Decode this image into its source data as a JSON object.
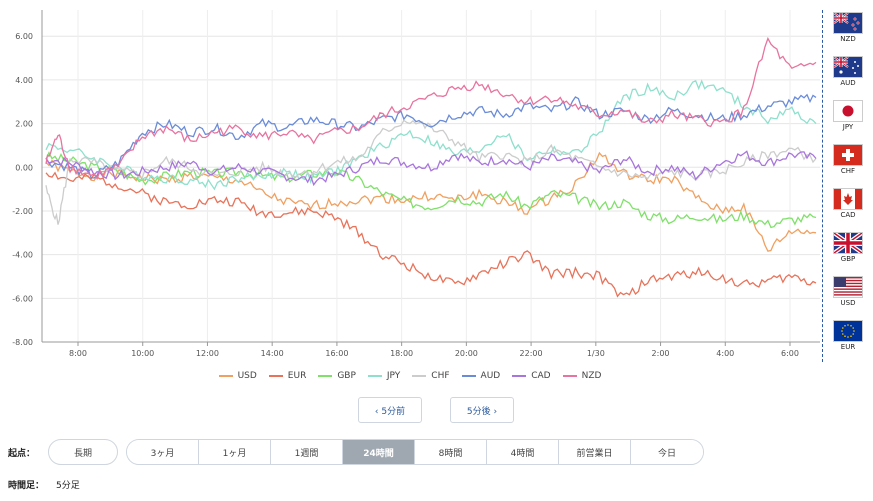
{
  "chart_data": {
    "type": "line",
    "y_ticks": [
      "6.00",
      "4.00",
      "2.00",
      "0.00",
      "-2.00",
      "-4.00",
      "-6.00",
      "-8.00"
    ],
    "x_ticks": [
      "8:00",
      "10:00",
      "12:00",
      "14:00",
      "16:00",
      "18:00",
      "20:00",
      "22:00",
      "1/30",
      "2:00",
      "4:00",
      "6:00"
    ],
    "ylim": [
      -8,
      7.2
    ],
    "grid": true,
    "legend_position": "bottom",
    "series": [
      {
        "name": "USD",
        "color": "#f0a060",
        "points": [
          [
            0,
            0.2
          ],
          [
            1,
            -0.2
          ],
          [
            2,
            -0.4
          ],
          [
            3,
            -0.3
          ],
          [
            4,
            -0.5
          ],
          [
            5,
            -0.6
          ],
          [
            6,
            -0.4
          ],
          [
            7,
            -0.5
          ],
          [
            8,
            -0.6
          ],
          [
            9,
            -1.2
          ],
          [
            10,
            -1.6
          ],
          [
            11,
            -1.8
          ],
          [
            12,
            -1.6
          ],
          [
            13,
            -1.5
          ],
          [
            14,
            -1.4
          ],
          [
            15,
            -1.5
          ],
          [
            16,
            -1.3
          ],
          [
            17,
            -1.5
          ],
          [
            18,
            -1.2
          ],
          [
            19,
            -1.6
          ],
          [
            20,
            -2.0
          ],
          [
            21,
            -1.4
          ],
          [
            22,
            -0.8
          ],
          [
            23,
            0.6
          ],
          [
            24,
            -0.3
          ],
          [
            25,
            -0.6
          ],
          [
            26,
            -0.5
          ],
          [
            27,
            -1.4
          ],
          [
            28,
            -2.0
          ],
          [
            29,
            -1.8
          ],
          [
            30,
            -3.8
          ],
          [
            31,
            -2.9
          ],
          [
            32,
            -3.0
          ]
        ]
      },
      {
        "name": "EUR",
        "color": "#e8735a",
        "points": [
          [
            0,
            -0.2
          ],
          [
            1,
            -0.6
          ],
          [
            2,
            -0.5
          ],
          [
            3,
            -0.8
          ],
          [
            4,
            -1.2
          ],
          [
            5,
            -1.6
          ],
          [
            6,
            -1.7
          ],
          [
            7,
            -1.5
          ],
          [
            8,
            -1.6
          ],
          [
            9,
            -2.1
          ],
          [
            10,
            -2.1
          ],
          [
            11,
            -2.0
          ],
          [
            12,
            -2.3
          ],
          [
            13,
            -3.0
          ],
          [
            14,
            -4.0
          ],
          [
            15,
            -4.5
          ],
          [
            16,
            -5.0
          ],
          [
            17,
            -5.4
          ],
          [
            18,
            -4.9
          ],
          [
            19,
            -4.4
          ],
          [
            20,
            -4.0
          ],
          [
            21,
            -4.9
          ],
          [
            22,
            -4.8
          ],
          [
            23,
            -5.0
          ],
          [
            24,
            -6.0
          ],
          [
            25,
            -5.2
          ],
          [
            26,
            -5.0
          ],
          [
            27,
            -4.8
          ],
          [
            28,
            -5.0
          ],
          [
            29,
            -5.4
          ],
          [
            30,
            -5.2
          ],
          [
            31,
            -5.0
          ],
          [
            32,
            -5.3
          ]
        ]
      },
      {
        "name": "GBP",
        "color": "#7fe06a",
        "points": [
          [
            0,
            0.5
          ],
          [
            1,
            0.3
          ],
          [
            2,
            0.0
          ],
          [
            3,
            -0.2
          ],
          [
            4,
            -0.6
          ],
          [
            5,
            -0.4
          ],
          [
            6,
            -0.2
          ],
          [
            7,
            -0.3
          ],
          [
            8,
            -0.2
          ],
          [
            9,
            -0.4
          ],
          [
            10,
            -0.5
          ],
          [
            11,
            -0.3
          ],
          [
            12,
            -0.2
          ],
          [
            13,
            -0.6
          ],
          [
            14,
            -1.2
          ],
          [
            15,
            -1.6
          ],
          [
            16,
            -1.8
          ],
          [
            17,
            -1.4
          ],
          [
            18,
            -1.6
          ],
          [
            19,
            -1.2
          ],
          [
            20,
            -1.8
          ],
          [
            21,
            -1.2
          ],
          [
            22,
            -1.4
          ],
          [
            23,
            -1.8
          ],
          [
            24,
            -1.6
          ],
          [
            25,
            -2.2
          ],
          [
            26,
            -2.4
          ],
          [
            27,
            -2.2
          ],
          [
            28,
            -2.4
          ],
          [
            29,
            -2.2
          ],
          [
            30,
            -2.6
          ],
          [
            31,
            -2.4
          ],
          [
            32,
            -2.3
          ]
        ]
      },
      {
        "name": "JPY",
        "color": "#8ee0cc",
        "points": [
          [
            0,
            1.0
          ],
          [
            1,
            0.8
          ],
          [
            2,
            0.4
          ],
          [
            3,
            0.0
          ],
          [
            4,
            -0.4
          ],
          [
            5,
            -0.5
          ],
          [
            6,
            -0.6
          ],
          [
            7,
            -0.8
          ],
          [
            8,
            -0.5
          ],
          [
            9,
            -0.4
          ],
          [
            10,
            -0.2
          ],
          [
            11,
            -0.5
          ],
          [
            12,
            -0.2
          ],
          [
            13,
            0.4
          ],
          [
            14,
            1.0
          ],
          [
            15,
            1.6
          ],
          [
            16,
            1.2
          ],
          [
            17,
            0.6
          ],
          [
            18,
            0.8
          ],
          [
            19,
            1.6
          ],
          [
            20,
            0.4
          ],
          [
            21,
            0.8
          ],
          [
            22,
            0.6
          ],
          [
            23,
            1.6
          ],
          [
            24,
            3.2
          ],
          [
            25,
            3.6
          ],
          [
            26,
            3.2
          ],
          [
            27,
            3.8
          ],
          [
            28,
            3.6
          ],
          [
            29,
            2.8
          ],
          [
            30,
            2.2
          ],
          [
            31,
            2.6
          ],
          [
            32,
            2.0
          ]
        ]
      },
      {
        "name": "CHF",
        "color": "#cccccc",
        "points": [
          [
            0,
            -1.0
          ],
          [
            0.5,
            -2.6
          ],
          [
            1,
            0.4
          ],
          [
            2,
            0.2
          ],
          [
            3,
            -0.2
          ],
          [
            4,
            -0.3
          ],
          [
            5,
            0.3
          ],
          [
            6,
            0.0
          ],
          [
            7,
            -0.4
          ],
          [
            8,
            -0.2
          ],
          [
            9,
            0.0
          ],
          [
            10,
            -0.3
          ],
          [
            11,
            -0.2
          ],
          [
            12,
            0.2
          ],
          [
            13,
            0.4
          ],
          [
            14,
            1.6
          ],
          [
            15,
            2.2
          ],
          [
            16,
            1.8
          ],
          [
            17,
            1.2
          ],
          [
            18,
            0.4
          ],
          [
            19,
            0.6
          ],
          [
            20,
            0.2
          ],
          [
            21,
            0.8
          ],
          [
            22,
            0.4
          ],
          [
            23,
            0.0
          ],
          [
            24,
            -0.3
          ],
          [
            25,
            -0.5
          ],
          [
            26,
            -0.2
          ],
          [
            27,
            -0.4
          ],
          [
            28,
            -0.2
          ],
          [
            29,
            0.2
          ],
          [
            30,
            0.6
          ],
          [
            31,
            0.8
          ],
          [
            32,
            0.4
          ]
        ]
      },
      {
        "name": "AUD",
        "color": "#6a8cd8",
        "points": [
          [
            0,
            0.3
          ],
          [
            1,
            0.0
          ],
          [
            2,
            -0.4
          ],
          [
            3,
            0.2
          ],
          [
            4,
            1.6
          ],
          [
            5,
            2.0
          ],
          [
            6,
            1.6
          ],
          [
            7,
            1.8
          ],
          [
            8,
            1.4
          ],
          [
            9,
            2.0
          ],
          [
            10,
            1.8
          ],
          [
            11,
            2.2
          ],
          [
            12,
            2.0
          ],
          [
            13,
            1.8
          ],
          [
            14,
            2.2
          ],
          [
            15,
            2.4
          ],
          [
            16,
            2.0
          ],
          [
            17,
            2.4
          ],
          [
            18,
            2.6
          ],
          [
            19,
            2.4
          ],
          [
            20,
            2.8
          ],
          [
            21,
            2.6
          ],
          [
            22,
            3.0
          ],
          [
            23,
            2.4
          ],
          [
            24,
            2.6
          ],
          [
            25,
            2.2
          ],
          [
            26,
            2.6
          ],
          [
            27,
            2.4
          ],
          [
            28,
            2.2
          ],
          [
            29,
            2.4
          ],
          [
            30,
            2.8
          ],
          [
            31,
            3.0
          ],
          [
            32,
            3.2
          ]
        ]
      },
      {
        "name": "CAD",
        "color": "#a875dc",
        "points": [
          [
            0,
            0.4
          ],
          [
            1,
            0.2
          ],
          [
            2,
            -0.2
          ],
          [
            3,
            -0.4
          ],
          [
            4,
            -0.2
          ],
          [
            5,
            0.0
          ],
          [
            6,
            0.2
          ],
          [
            7,
            -0.2
          ],
          [
            8,
            0.0
          ],
          [
            9,
            -0.2
          ],
          [
            10,
            -0.4
          ],
          [
            11,
            -0.6
          ],
          [
            12,
            -0.4
          ],
          [
            13,
            0.0
          ],
          [
            14,
            0.4
          ],
          [
            15,
            0.2
          ],
          [
            16,
            0.0
          ],
          [
            17,
            0.6
          ],
          [
            18,
            0.2
          ],
          [
            19,
            0.4
          ],
          [
            20,
            0.0
          ],
          [
            21,
            0.4
          ],
          [
            22,
            0.2
          ],
          [
            23,
            -0.2
          ],
          [
            24,
            0.4
          ],
          [
            25,
            -0.2
          ],
          [
            26,
            0.0
          ],
          [
            27,
            -0.4
          ],
          [
            28,
            0.2
          ],
          [
            29,
            0.6
          ],
          [
            30,
            0.2
          ],
          [
            31,
            0.6
          ],
          [
            32,
            0.4
          ]
        ]
      },
      {
        "name": "NZD",
        "color": "#e8739e",
        "points": [
          [
            0,
            0.2
          ],
          [
            0.5,
            1.5
          ],
          [
            1,
            0.0
          ],
          [
            2,
            -0.4
          ],
          [
            3,
            0.0
          ],
          [
            4,
            1.4
          ],
          [
            5,
            1.8
          ],
          [
            6,
            1.2
          ],
          [
            7,
            1.6
          ],
          [
            8,
            1.8
          ],
          [
            9,
            1.4
          ],
          [
            10,
            1.6
          ],
          [
            11,
            1.2
          ],
          [
            12,
            1.6
          ],
          [
            13,
            1.8
          ],
          [
            14,
            2.4
          ],
          [
            15,
            2.8
          ],
          [
            16,
            3.2
          ],
          [
            17,
            3.6
          ],
          [
            18,
            3.8
          ],
          [
            19,
            3.4
          ],
          [
            20,
            3.0
          ],
          [
            21,
            3.2
          ],
          [
            22,
            2.8
          ],
          [
            23,
            2.4
          ],
          [
            24,
            2.6
          ],
          [
            25,
            2.0
          ],
          [
            26,
            2.4
          ],
          [
            27,
            2.2
          ],
          [
            28,
            2.0
          ],
          [
            29,
            2.6
          ],
          [
            30,
            5.8
          ],
          [
            31,
            4.4
          ],
          [
            32,
            4.8
          ]
        ]
      }
    ]
  },
  "nav": {
    "prev_label": "‹ 5分前",
    "next_label": "5分後 ›"
  },
  "origin": {
    "label": "起点：",
    "long_term": "長期",
    "options": [
      "3ヶ月",
      "1ヶ月",
      "1週間",
      "24時間",
      "8時間",
      "4時間",
      "前営業日",
      "今日"
    ],
    "active": "24時間"
  },
  "timeframe": {
    "label": "時間足：",
    "value": "5分足"
  },
  "flags": [
    "NZD",
    "AUD",
    "JPY",
    "CHF",
    "CAD",
    "GBP",
    "USD",
    "EUR"
  ],
  "colors": {
    "active_tab": "#9fa7b0",
    "nav_text": "#2a5a9a",
    "divider": "#2b5ba8"
  }
}
